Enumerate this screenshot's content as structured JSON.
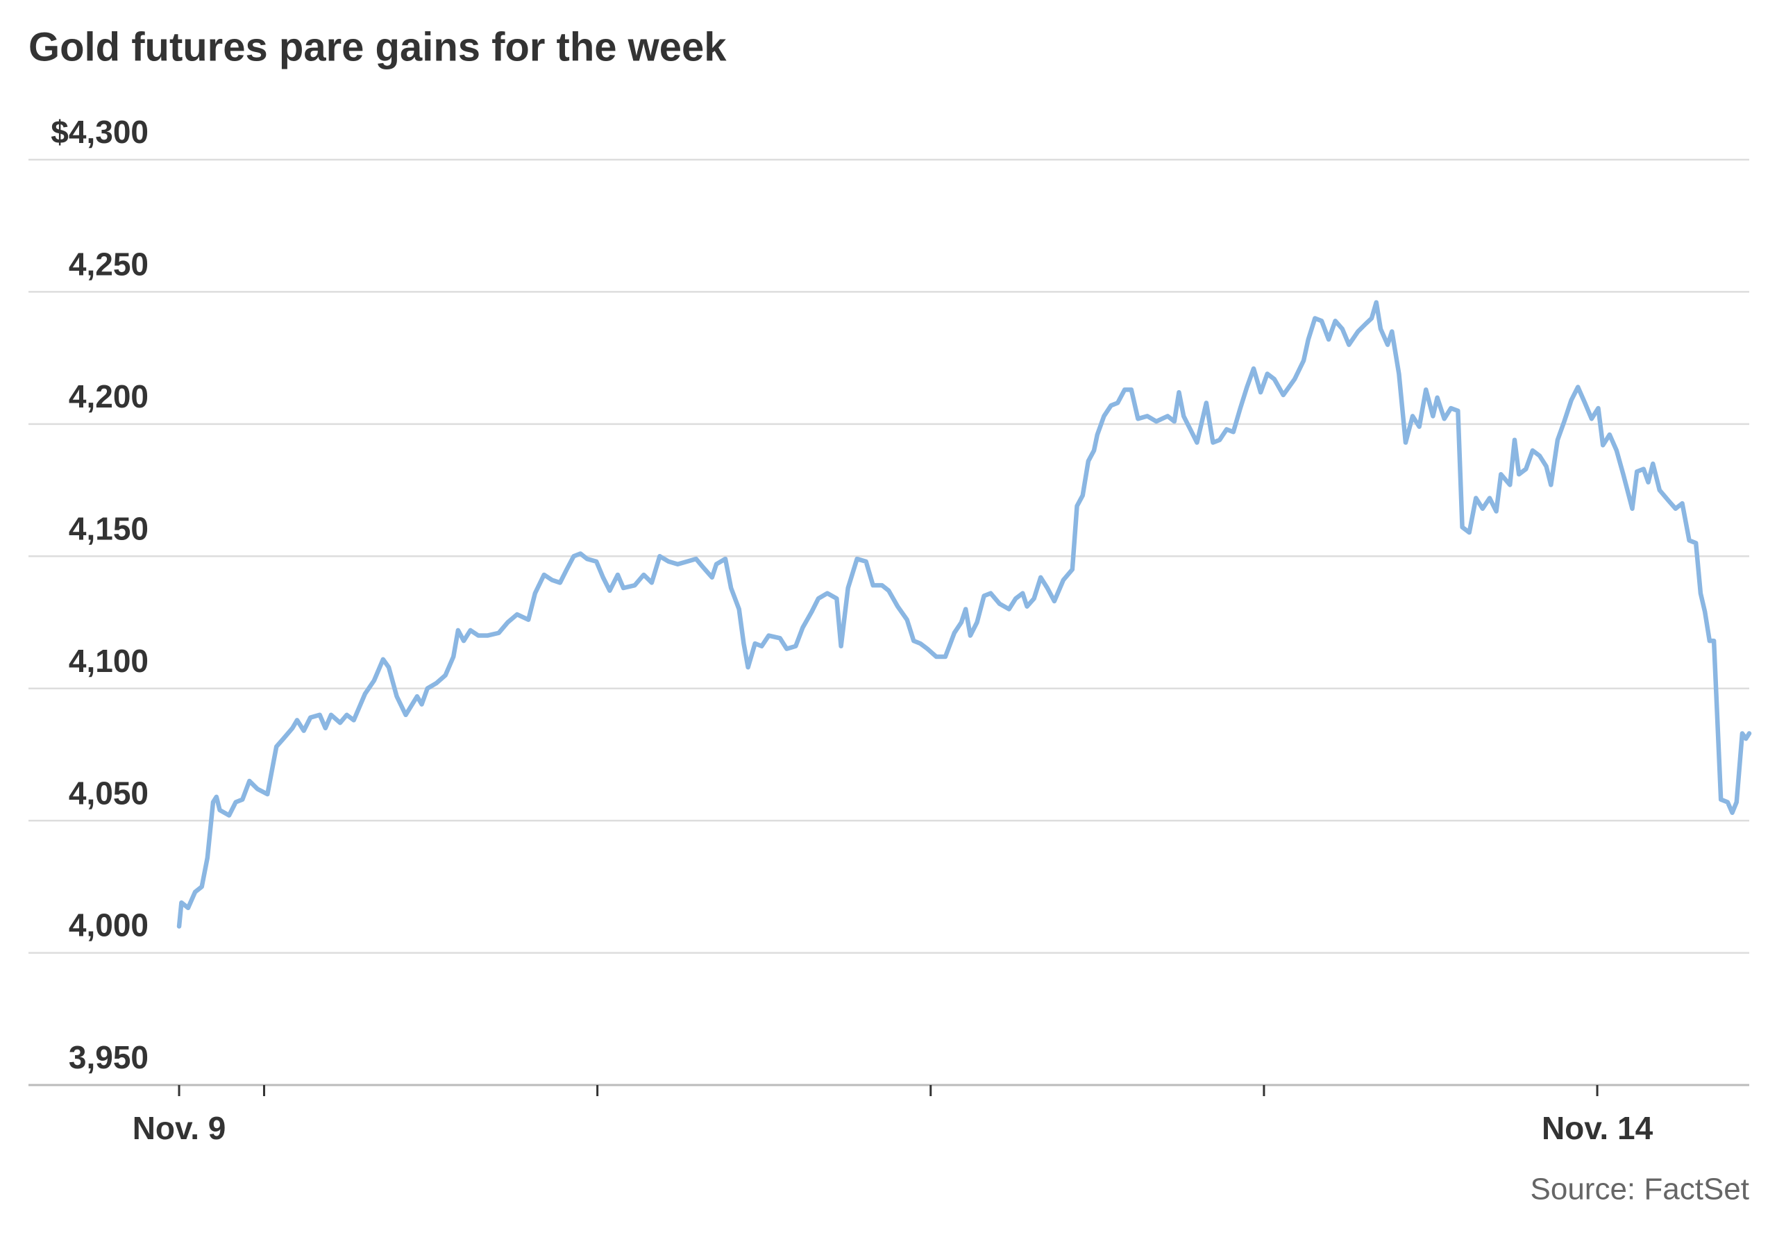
{
  "chart_data": {
    "type": "line",
    "title": "Gold futures pare gains for the week",
    "source": "Source: FactSet",
    "color": "#8ab6e2",
    "grid": true,
    "xlim": [
      9.293,
      14.456
    ],
    "xticks": [
      {
        "value": 9.745,
        "label": "Nov. 9"
      },
      {
        "value": 10,
        "label": null
      },
      {
        "value": 11,
        "label": null
      },
      {
        "value": 12,
        "label": null
      },
      {
        "value": 13,
        "label": null
      },
      {
        "value": 14,
        "label": "Nov. 14"
      }
    ],
    "ylim": [
      3950,
      4300
    ],
    "yticks": [
      {
        "value": 3950,
        "label": "3,950"
      },
      {
        "value": 4000,
        "label": "4,000"
      },
      {
        "value": 4050,
        "label": "4,050"
      },
      {
        "value": 4100,
        "label": "4,100"
      },
      {
        "value": 4150,
        "label": "4,150"
      },
      {
        "value": 4200,
        "label": "4,200"
      },
      {
        "value": 4250,
        "label": "4,250"
      },
      {
        "value": 4300,
        "label": "$4,300"
      }
    ],
    "x": [
      9.745,
      9.752,
      9.772,
      9.793,
      9.813,
      9.83,
      9.847,
      9.857,
      9.867,
      9.895,
      9.915,
      9.935,
      9.956,
      9.98,
      10.01,
      10.037,
      10.058,
      10.085,
      10.099,
      10.119,
      10.139,
      10.167,
      10.184,
      10.201,
      10.228,
      10.248,
      10.269,
      10.303,
      10.33,
      10.357,
      10.374,
      10.398,
      10.425,
      10.459,
      10.473,
      10.49,
      10.517,
      10.544,
      10.568,
      10.582,
      10.599,
      10.619,
      10.643,
      10.67,
      10.704,
      10.731,
      10.759,
      10.793,
      10.813,
      10.84,
      10.864,
      10.888,
      10.908,
      10.929,
      10.949,
      10.969,
      10.997,
      11.017,
      11.037,
      11.061,
      11.078,
      11.112,
      11.139,
      11.163,
      11.187,
      11.214,
      11.241,
      11.269,
      11.296,
      11.316,
      11.344,
      11.357,
      11.384,
      11.401,
      11.425,
      11.439,
      11.452,
      11.473,
      11.493,
      11.514,
      11.548,
      11.568,
      11.595,
      11.616,
      11.643,
      11.663,
      11.69,
      11.718,
      11.731,
      11.752,
      11.779,
      11.806,
      11.827,
      11.854,
      11.874,
      11.901,
      11.929,
      11.949,
      11.969,
      11.99,
      12.017,
      12.044,
      12.071,
      12.092,
      12.105,
      12.119,
      12.139,
      12.16,
      12.18,
      12.207,
      12.235,
      12.255,
      12.276,
      12.289,
      12.31,
      12.33,
      12.35,
      12.371,
      12.398,
      12.425,
      12.439,
      12.456,
      12.473,
      12.49,
      12.5,
      12.52,
      12.541,
      12.561,
      12.582,
      12.602,
      12.622,
      12.65,
      12.677,
      12.711,
      12.731,
      12.745,
      12.759,
      12.779,
      12.799,
      12.827,
      12.847,
      12.867,
      12.888,
      12.908,
      12.929,
      12.949,
      12.969,
      12.99,
      13.01,
      13.031,
      13.058,
      13.092,
      13.119,
      13.133,
      13.153,
      13.173,
      13.194,
      13.214,
      13.235,
      13.255,
      13.282,
      13.306,
      13.323,
      13.337,
      13.35,
      13.371,
      13.384,
      13.405,
      13.425,
      13.446,
      13.466,
      13.486,
      13.507,
      13.52,
      13.541,
      13.561,
      13.582,
      13.595,
      13.616,
      13.636,
      13.656,
      13.677,
      13.697,
      13.711,
      13.738,
      13.752,
      13.765,
      13.786,
      13.806,
      13.827,
      13.847,
      13.861,
      13.881,
      13.901,
      13.922,
      13.942,
      13.963,
      13.983,
      14.003,
      14.017,
      14.037,
      14.058,
      14.078,
      14.105,
      14.119,
      14.139,
      14.153,
      14.167,
      14.187,
      14.214,
      14.235,
      14.255,
      14.276,
      14.296,
      14.31,
      14.323,
      14.337,
      14.35,
      14.371,
      14.391,
      14.405,
      14.418,
      14.435,
      14.446,
      14.456
    ],
    "values": [
      4010,
      4019,
      4017,
      4023,
      4025,
      4036,
      4057,
      4059,
      4054,
      4052,
      4057,
      4058,
      4065,
      4062,
      4060,
      4078,
      4081,
      4085,
      4088,
      4084,
      4089,
      4090,
      4085,
      4090,
      4087,
      4090,
      4088,
      4098,
      4103,
      4111,
      4108,
      4097,
      4090,
      4097,
      4094,
      4100,
      4102,
      4105,
      4112,
      4122,
      4118,
      4122,
      4120,
      4120,
      4121,
      4125,
      4128,
      4126,
      4136,
      4143,
      4141,
      4140,
      4145,
      4150,
      4151,
      4149,
      4148,
      4142,
      4137,
      4143,
      4138,
      4139,
      4143,
      4140,
      4150,
      4148,
      4147,
      4148,
      4149,
      4146,
      4142,
      4147,
      4149,
      4138,
      4130,
      4117,
      4108,
      4117,
      4116,
      4120,
      4119,
      4115,
      4116,
      4123,
      4129,
      4134,
      4136,
      4134,
      4116,
      4138,
      4149,
      4148,
      4139,
      4139,
      4137,
      4131,
      4126,
      4118,
      4117,
      4115,
      4112,
      4112,
      4121,
      4125,
      4130,
      4120,
      4125,
      4135,
      4136,
      4132,
      4130,
      4134,
      4136,
      4131,
      4134,
      4142,
      4138,
      4133,
      4141,
      4145,
      4169,
      4173,
      4186,
      4190,
      4196,
      4203,
      4207,
      4208,
      4213,
      4213,
      4202,
      4203,
      4201,
      4203,
      4201,
      4212,
      4203,
      4198,
      4193,
      4208,
      4193,
      4194,
      4198,
      4197,
      4206,
      4214,
      4221,
      4212,
      4219,
      4217,
      4211,
      4217,
      4224,
      4232,
      4240,
      4239,
      4232,
      4239,
      4236,
      4230,
      4235,
      4238,
      4240,
      4246,
      4236,
      4230,
      4235,
      4219,
      4193,
      4203,
      4199,
      4213,
      4203,
      4210,
      4202,
      4206,
      4205,
      4161,
      4159,
      4172,
      4168,
      4172,
      4167,
      4181,
      4177,
      4194,
      4181,
      4183,
      4190,
      4188,
      4184,
      4177,
      4194,
      4201,
      4209,
      4214,
      4208,
      4202,
      4206,
      4192,
      4196,
      4190,
      4181,
      4168,
      4182,
      4183,
      4178,
      4185,
      4175,
      4171,
      4168,
      4170,
      4156,
      4155,
      4136,
      4129,
      4118,
      4118,
      4058,
      4057,
      4053,
      4057,
      4083,
      4081,
      4083
    ]
  }
}
